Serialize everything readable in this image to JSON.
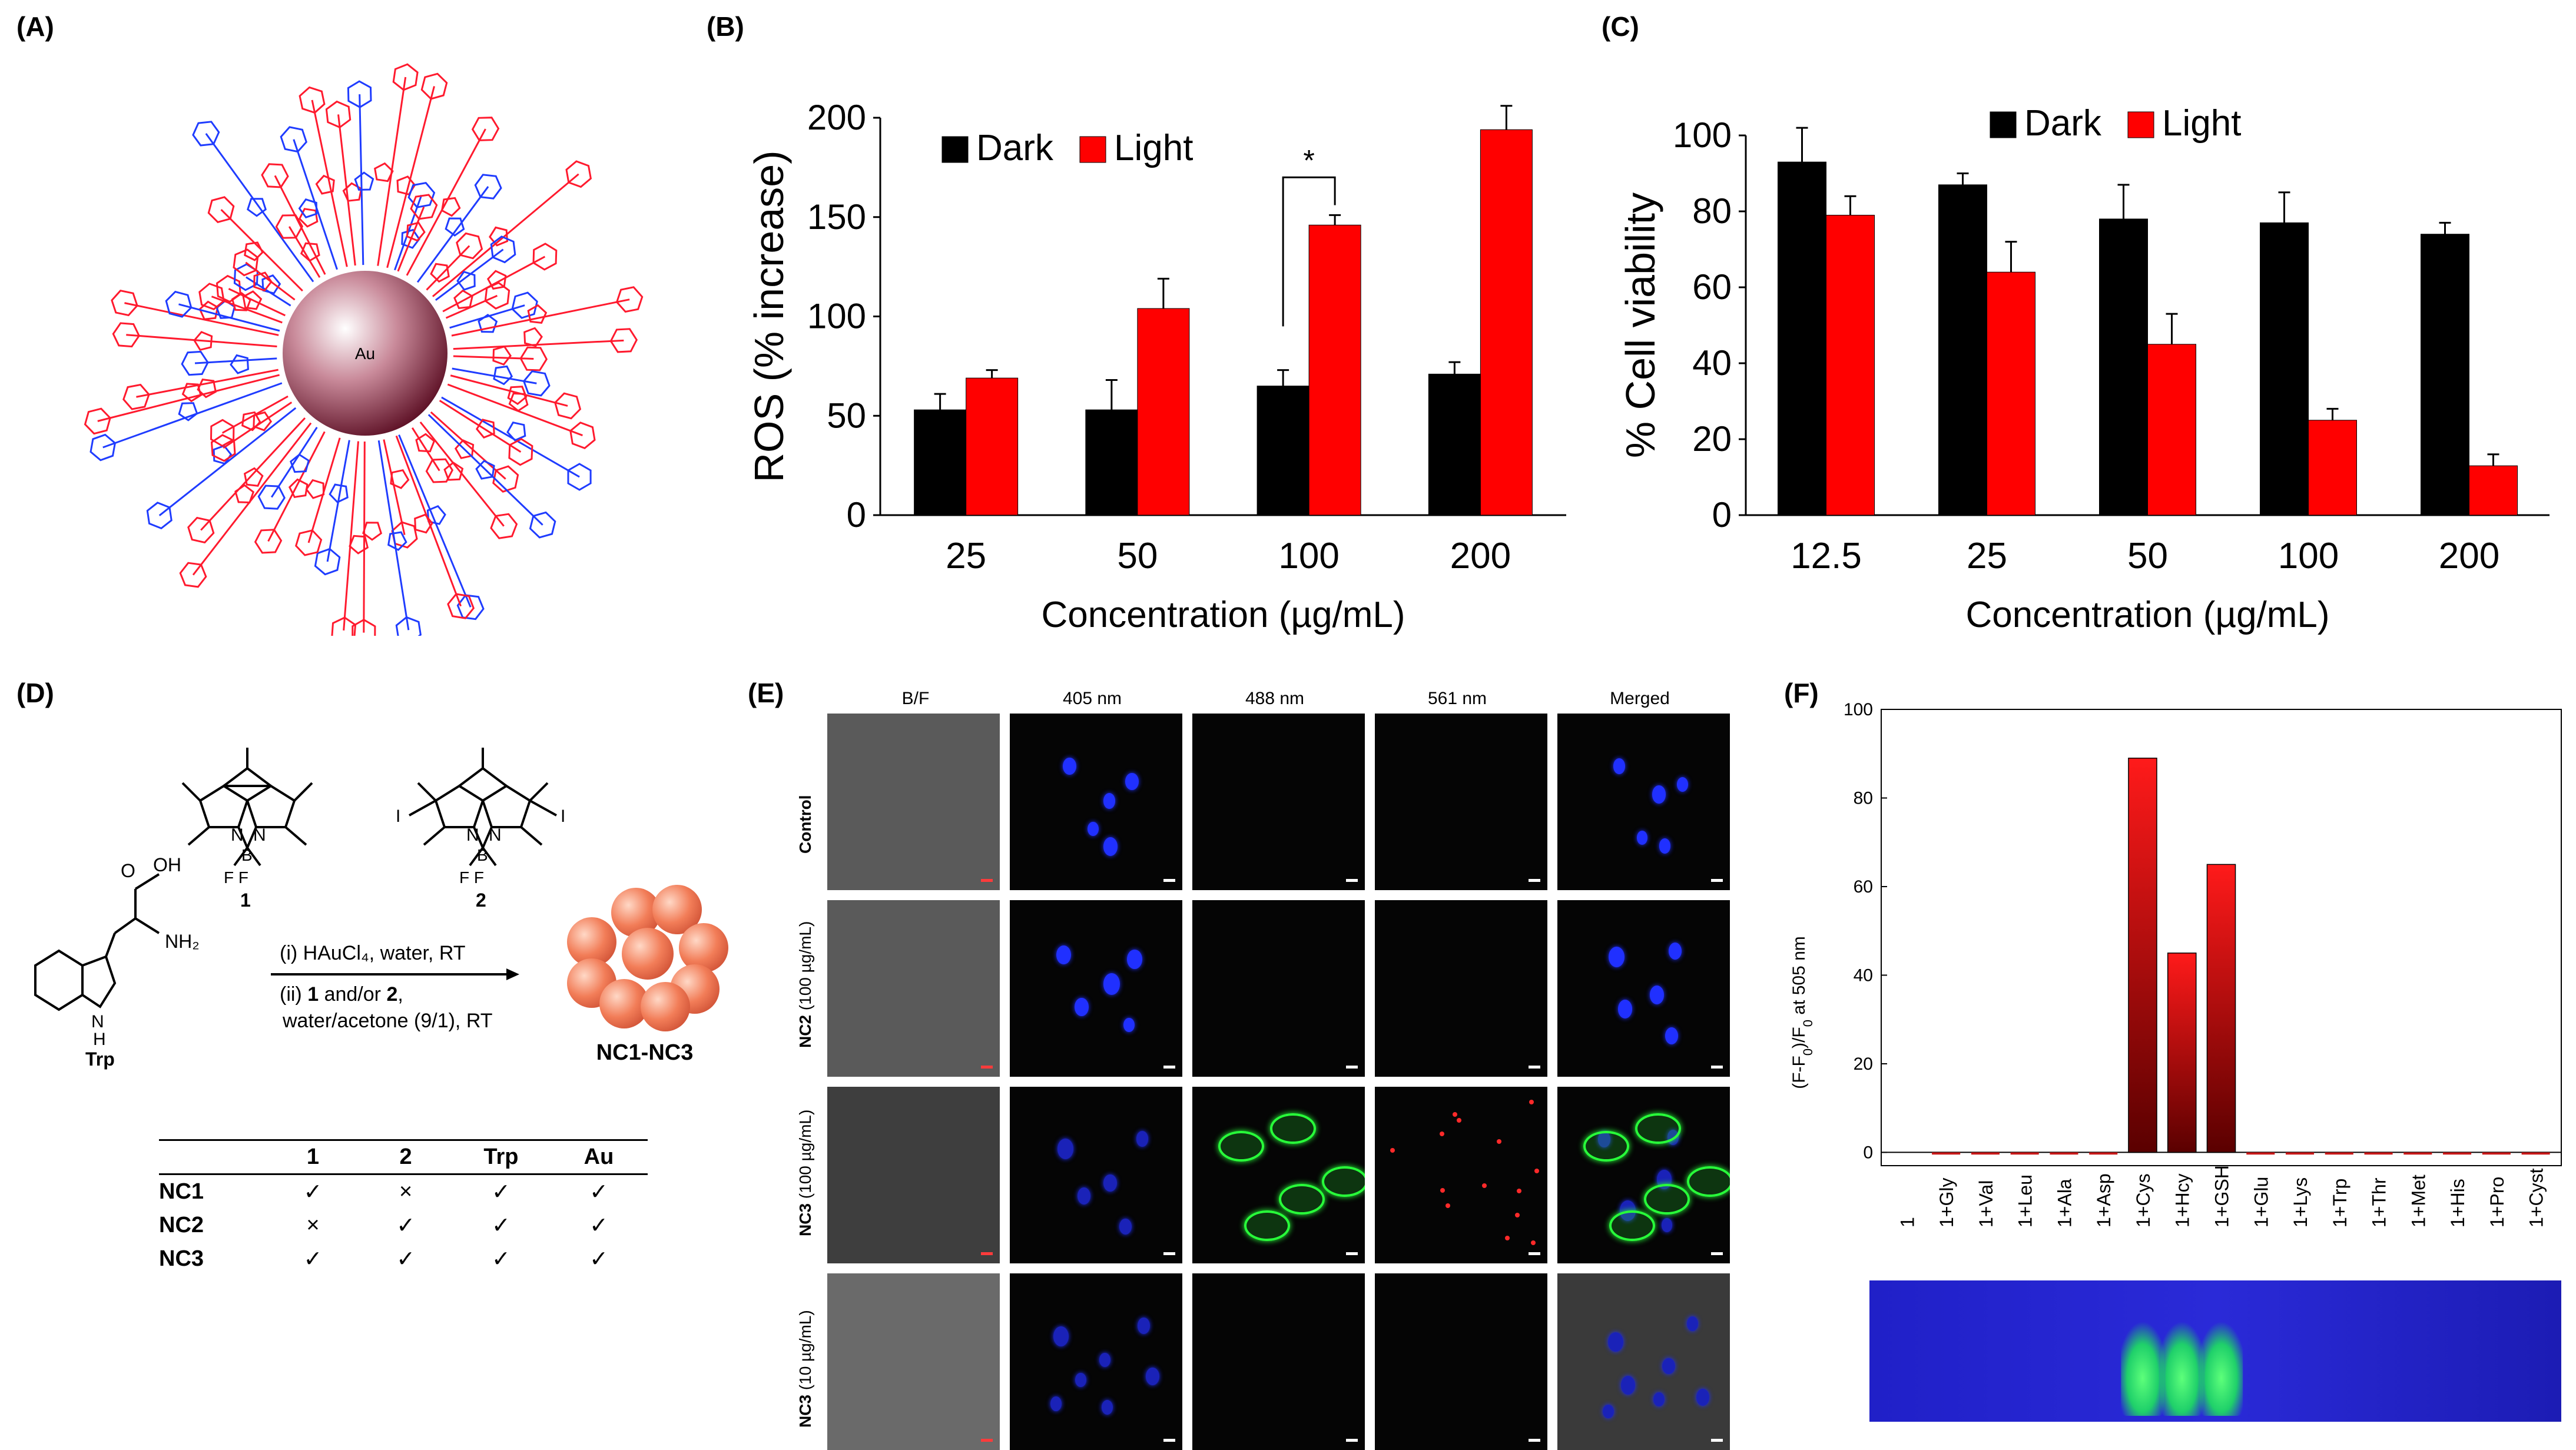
{
  "panel_labels": {
    "a": "(A)",
    "b": "(B)",
    "c": "(C)",
    "d": "(D)",
    "e": "(E)",
    "f": "(F)"
  },
  "panel_a": {
    "core_label": "Au"
  },
  "chart_data": [
    {
      "id": "B",
      "type": "bar",
      "categories": [
        "25",
        "50",
        "100",
        "200"
      ],
      "series": [
        {
          "name": "Dark",
          "color": "#000000",
          "values": [
            53,
            53,
            65,
            71
          ],
          "errors": [
            8,
            15,
            8,
            6
          ]
        },
        {
          "name": "Light",
          "color": "#ff0000",
          "values": [
            69,
            104,
            146,
            194
          ],
          "errors": [
            4,
            15,
            5,
            12
          ]
        }
      ],
      "xlabel": "Concentration (µg/mL)",
      "ylabel": "ROS (% increase)",
      "ylim": [
        0,
        200
      ],
      "yticks": [
        0,
        50,
        100,
        150,
        200
      ],
      "legend": "top-left",
      "annotation": "*"
    },
    {
      "id": "C",
      "type": "bar",
      "categories": [
        "12.5",
        "25",
        "50",
        "100",
        "200"
      ],
      "series": [
        {
          "name": "Dark",
          "color": "#000000",
          "values": [
            93,
            87,
            78,
            77,
            74
          ],
          "errors": [
            9,
            3,
            9,
            8,
            3
          ]
        },
        {
          "name": "Light",
          "color": "#ff0000",
          "values": [
            79,
            64,
            45,
            25,
            13
          ],
          "errors": [
            5,
            8,
            8,
            3,
            3
          ]
        }
      ],
      "xlabel": "Concentration (µg/mL)",
      "ylabel": "% Cell viability",
      "ylim": [
        0,
        100
      ],
      "yticks": [
        0,
        20,
        40,
        60,
        80,
        100
      ],
      "legend": "top-right"
    },
    {
      "id": "F",
      "type": "bar",
      "categories": [
        "1",
        "1+Gly",
        "1+Val",
        "1+Leu",
        "1+Ala",
        "1+Asp",
        "1+Cys",
        "1+Hcy",
        "1+GSH",
        "1+Glu",
        "1+Lys",
        "1+Trp",
        "1+Thr",
        "1+Met",
        "1+His",
        "1+Pro",
        "1+Cyst"
      ],
      "values": [
        0,
        -0.5,
        -0.5,
        -0.5,
        -0.5,
        -0.5,
        89,
        45,
        65,
        -0.5,
        -0.5,
        -0.5,
        -0.5,
        -0.5,
        -0.5,
        -0.5,
        -0.5
      ],
      "ylabel_parts": {
        "a": "(F-F",
        "b": "0",
        "c": ")/F",
        "d": "0",
        "e": " at 505 nm"
      },
      "ylim": [
        -3,
        100
      ],
      "yticks": [
        0,
        20,
        40,
        60,
        80,
        100
      ],
      "bar_color": "#c81818"
    }
  ],
  "panel_d": {
    "compound1": "1",
    "compound2": "2",
    "trp_label": "Trp",
    "step1": "(i) HAuCl₄, water, RT",
    "step2a": "(ii) ",
    "step2b": "1",
    "step2c": " and/or ",
    "step2d": "2",
    "step2e": ",",
    "step3": "water/acetone (9/1), RT",
    "product": "NC1-NC3",
    "table": {
      "headers": [
        "",
        "1",
        "2",
        "Trp",
        "Au"
      ],
      "rows": [
        [
          "NC1",
          "✓",
          "×",
          "✓",
          "✓"
        ],
        [
          "NC2",
          "×",
          "✓",
          "✓",
          "✓"
        ],
        [
          "NC3",
          "✓",
          "✓",
          "✓",
          "✓"
        ]
      ]
    }
  },
  "panel_e": {
    "columns": [
      "B/F",
      "405 nm",
      "488 nm",
      "561 nm",
      "Merged"
    ],
    "rows": [
      {
        "name": "Control",
        "conc": ""
      },
      {
        "name": "NC2",
        "conc": " (100 µg/mL)"
      },
      {
        "name": "NC3",
        "conc": " (100 µg/mL)"
      },
      {
        "name": "NC3",
        "conc": " (10 µg/mL)"
      }
    ]
  }
}
